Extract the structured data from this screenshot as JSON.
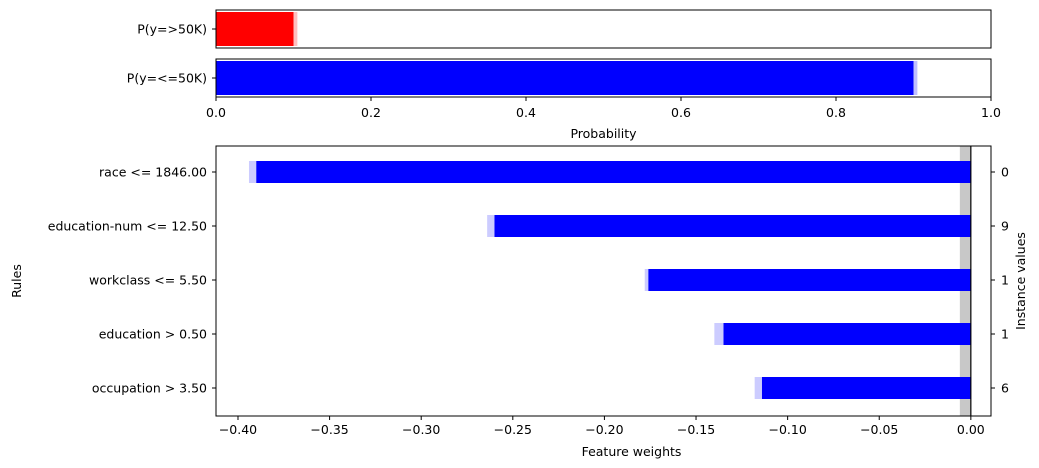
{
  "chart_data": [
    {
      "type": "bar",
      "orientation": "horizontal",
      "categories": [
        "P(y=>50K)",
        "P(y=<=50K)"
      ],
      "values": [
        0.1,
        0.9
      ],
      "uncertainty_upper": [
        0.105,
        0.905
      ],
      "colors": [
        "#ff0000",
        "#0000ff"
      ],
      "xlabel": "Probability",
      "xlim": [
        0,
        1
      ],
      "xticks": [
        "0.0",
        "0.2",
        "0.4",
        "0.6",
        "0.8",
        "1.0"
      ]
    },
    {
      "type": "bar",
      "orientation": "horizontal",
      "categories": [
        "race <= 1846.00",
        "education-num <= 12.50",
        "workclass <= 5.50",
        "education > 0.50",
        "occupation > 3.50"
      ],
      "values": [
        -0.39,
        -0.26,
        -0.176,
        -0.135,
        -0.114
      ],
      "uncertainty_low": [
        -0.394,
        -0.264,
        -0.178,
        -0.14,
        -0.118
      ],
      "instance_values": [
        "0",
        "9",
        "1",
        "1",
        "6"
      ],
      "color": "#0000ff",
      "xlabel": "Feature weights",
      "ylabel": "Rules",
      "right_ylabel": "Instance values",
      "xlim": [
        -0.412,
        0.011
      ],
      "xticks": [
        "−0.40",
        "−0.35",
        "−0.30",
        "−0.25",
        "−0.20",
        "−0.15",
        "−0.10",
        "−0.05",
        "0.00"
      ],
      "baseline": 0,
      "baseline_band": [
        -0.006,
        0
      ]
    }
  ]
}
